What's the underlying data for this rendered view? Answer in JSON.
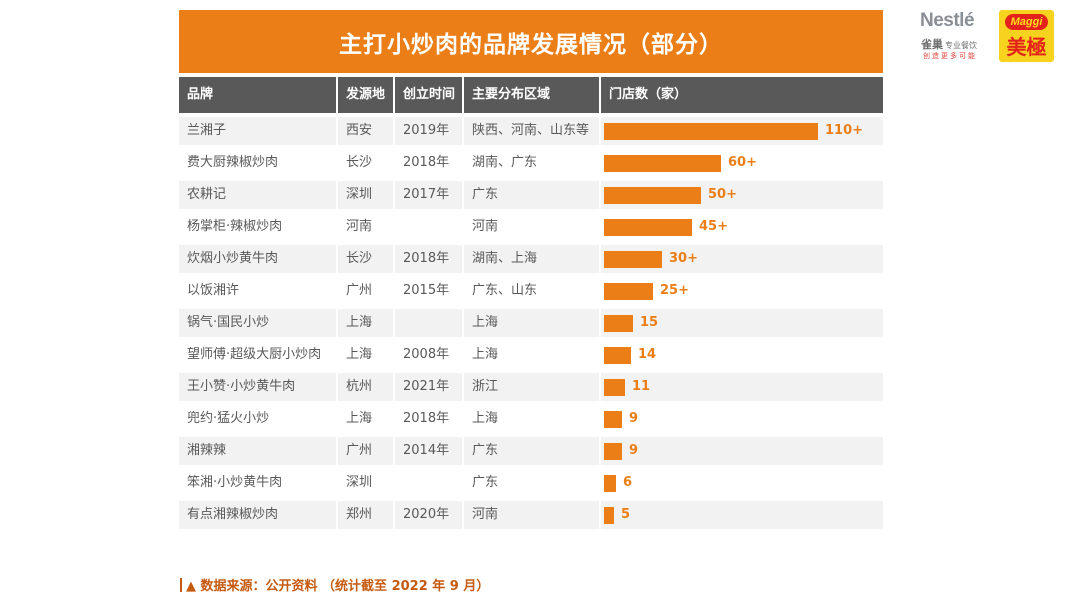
{
  "title": "主打小炒肉的品牌发展情况（部分）",
  "logos": {
    "nestle_word": "Nestlé",
    "nestle_cn": "雀巢",
    "nestle_cn_sub": "专业餐饮",
    "nestle_slogan": "创造更多可能",
    "maggi_word": "Maggi",
    "maggi_cn": "美極"
  },
  "columns": [
    "品牌",
    "发源地",
    "创立时间",
    "主要分布区域",
    "门店数（家）"
  ],
  "colors": {
    "accent": "#EC7E17",
    "header_bg": "#595959",
    "row_shade": "#F2F2F2",
    "source_text": "#C55A11"
  },
  "chart_data": {
    "type": "bar",
    "orientation": "horizontal",
    "title": "主打小炒肉的品牌发展情况（部分）",
    "xlabel": "门店数（家）",
    "categories": [
      "兰湘子",
      "费大厨辣椒炒肉",
      "农耕记",
      "杨掌柜·辣椒炒肉",
      "炊烟小炒黄牛肉",
      "以饭湘许",
      "锅气·国民小炒",
      "望师傅·超级大厨小炒肉",
      "王小赞·小炒黄牛肉",
      "兜约·猛火小炒",
      "湘辣辣",
      "笨湘·小炒黄牛肉",
      "有点湘辣椒炒肉"
    ],
    "values": [
      110,
      60,
      50,
      45,
      30,
      25,
      15,
      14,
      11,
      9,
      9,
      6,
      5
    ],
    "value_labels": [
      "110+",
      "60+",
      "50+",
      "45+",
      "30+",
      "25+",
      "15",
      "14",
      "11",
      "9",
      "9",
      "6",
      "5"
    ],
    "xlim": [
      0,
      110
    ]
  },
  "rows": [
    {
      "brand": "兰湘子",
      "origin": "西安",
      "founded": "2019年",
      "region": "陕西、河南、山东等"
    },
    {
      "brand": "费大厨辣椒炒肉",
      "origin": "长沙",
      "founded": "2018年",
      "region": "湖南、广东"
    },
    {
      "brand": "农耕记",
      "origin": "深圳",
      "founded": "2017年",
      "region": "广东"
    },
    {
      "brand": "杨掌柜·辣椒炒肉",
      "origin": "河南",
      "founded": "",
      "region": "河南"
    },
    {
      "brand": "炊烟小炒黄牛肉",
      "origin": "长沙",
      "founded": "2018年",
      "region": "湖南、上海"
    },
    {
      "brand": "以饭湘许",
      "origin": "广州",
      "founded": "2015年",
      "region": "广东、山东"
    },
    {
      "brand": "锅气·国民小炒",
      "origin": "上海",
      "founded": "",
      "region": "上海"
    },
    {
      "brand": "望师傅·超级大厨小炒肉",
      "origin": "上海",
      "founded": "2008年",
      "region": "上海"
    },
    {
      "brand": "王小赞·小炒黄牛肉",
      "origin": "杭州",
      "founded": "2021年",
      "region": "浙江"
    },
    {
      "brand": "兜约·猛火小炒",
      "origin": "上海",
      "founded": "2018年",
      "region": "上海"
    },
    {
      "brand": "湘辣辣",
      "origin": "广州",
      "founded": "2014年",
      "region": "广东"
    },
    {
      "brand": "笨湘·小炒黄牛肉",
      "origin": "深圳",
      "founded": "",
      "region": "广东"
    },
    {
      "brand": "有点湘辣椒炒肉",
      "origin": "郑州",
      "founded": "2020年",
      "region": "河南"
    }
  ],
  "source": "▲ 数据来源：公开资料  （统计截至 2022 年 9 月）"
}
